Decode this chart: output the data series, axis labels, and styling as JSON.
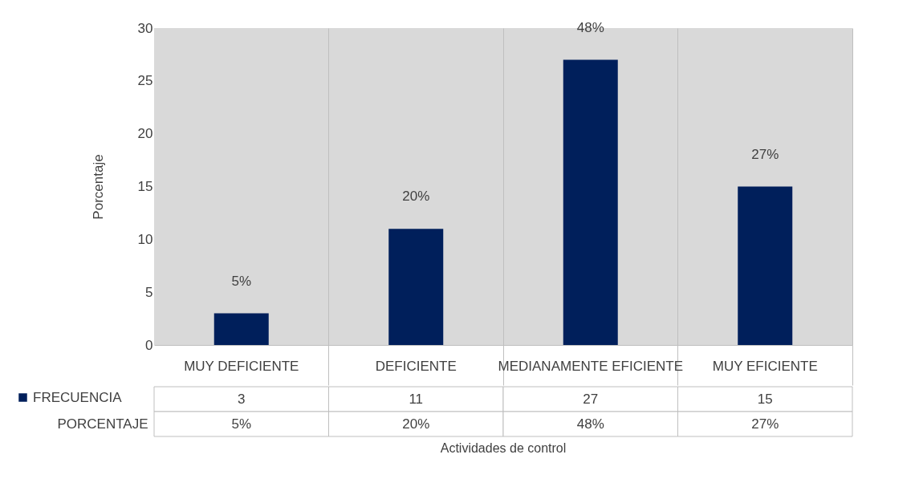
{
  "chart_data": {
    "type": "bar",
    "ylabel": "Porcentaje",
    "categories": [
      "MUY DEFICIENTE",
      "DEFICIENTE",
      "MEDIANAMENTE EFICIENTE",
      "MUY EFICIENTE"
    ],
    "series": [
      {
        "name": "FRECUENCIA",
        "color": "#001f5b",
        "values": [
          3,
          11,
          27,
          15
        ],
        "value_labels": [
          "3",
          "11",
          "27",
          "15"
        ]
      }
    ],
    "annotations": [
      "PORCENTAJE",
      "Actividades de control",
      {
        "text": "5%",
        "x": "MUY DEFICIENTE",
        "y": 3
      },
      {
        "text": "20%",
        "x": "DEFICIENTE",
        "y": 11
      },
      {
        "text": "48%",
        "x": "MEDIANAMENTE EFICIENTE",
        "y": 27
      },
      {
        "text": "27%",
        "x": "MUY EFICIENTE",
        "y": 15
      }
    ],
    "legend": "bottom left",
    "ylim": [
      0,
      30
    ],
    "yticks": [
      0,
      5,
      10,
      15,
      20,
      25,
      30
    ],
    "grid": false
  }
}
